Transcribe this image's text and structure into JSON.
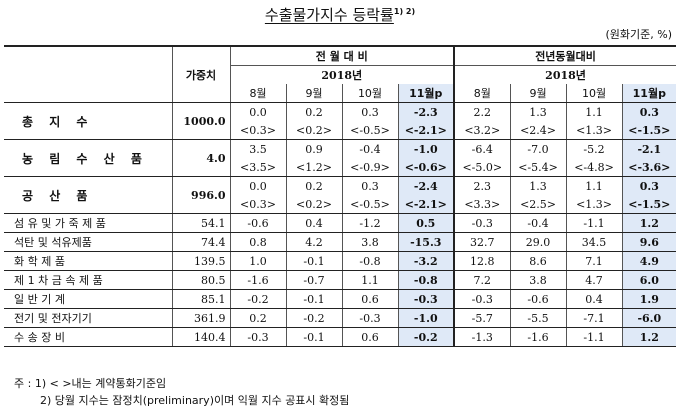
{
  "title": "수출물가지수 등락률",
  "title_sup": "1) 2)",
  "unit": "(원화기준, %)",
  "headers": {
    "weight": "가중치",
    "group1": "전 월 대 비",
    "group2": "전년동월대비",
    "year": "2018년",
    "months": [
      "8월",
      "9월",
      "10월",
      "11월p"
    ]
  },
  "rows": [
    {
      "name": "총 지 수",
      "weight": "1000.0",
      "mom": [
        "0.0",
        "0.2",
        "0.3",
        "-2.3"
      ],
      "mom_c": [
        "<0.3>",
        "<0.2>",
        "<-0.5>",
        "<-2.1>"
      ],
      "yoy": [
        "2.2",
        "1.3",
        "1.1",
        "0.3"
      ],
      "yoy_c": [
        "<3.2>",
        "<2.4>",
        "<1.3>",
        "<-1.5>"
      ]
    },
    {
      "name": "농 림 수 산 품",
      "weight": "4.0",
      "mom": [
        "3.5",
        "0.9",
        "-0.4",
        "-1.0"
      ],
      "mom_c": [
        "<3.5>",
        "<1.2>",
        "<-0.9>",
        "<-0.6>"
      ],
      "yoy": [
        "-6.4",
        "-7.0",
        "-5.2",
        "-2.1"
      ],
      "yoy_c": [
        "<-5.0>",
        "<-5.4>",
        "<-4.8>",
        "<-3.6>"
      ]
    },
    {
      "name": "공 산 품",
      "weight": "996.0",
      "mom": [
        "0.0",
        "0.2",
        "0.3",
        "-2.4"
      ],
      "mom_c": [
        "<0.3>",
        "<0.2>",
        "<-0.5>",
        "<-2.1>"
      ],
      "yoy": [
        "2.3",
        "1.3",
        "1.1",
        "0.3"
      ],
      "yoy_c": [
        "<3.3>",
        "<2.5>",
        "<1.3>",
        "<-1.5>"
      ]
    }
  ],
  "subrows": [
    {
      "name": "섬 유 및 가 죽 제 품",
      "weight": "54.1",
      "mom": [
        "-0.6",
        "0.4",
        "-1.2",
        "0.5"
      ],
      "yoy": [
        "-0.3",
        "-0.4",
        "-1.1",
        "1.2"
      ]
    },
    {
      "name": "석탄 및 석유제품",
      "weight": "74.4",
      "mom": [
        "0.8",
        "4.2",
        "3.8",
        "-15.3"
      ],
      "yoy": [
        "32.7",
        "29.0",
        "34.5",
        "9.6"
      ]
    },
    {
      "name": "화 학 제 품",
      "weight": "139.5",
      "mom": [
        "1.0",
        "-0.1",
        "-0.8",
        "-3.2"
      ],
      "yoy": [
        "12.8",
        "8.6",
        "7.1",
        "4.9"
      ]
    },
    {
      "name": "제 1 차 금 속 제 품",
      "weight": "80.5",
      "mom": [
        "-1.6",
        "-0.7",
        "1.1",
        "-0.8"
      ],
      "yoy": [
        "7.2",
        "3.8",
        "4.7",
        "6.0"
      ]
    },
    {
      "name": "일 반 기 계",
      "weight": "85.1",
      "mom": [
        "-0.2",
        "-0.1",
        "0.6",
        "-0.3"
      ],
      "yoy": [
        "-0.3",
        "-0.6",
        "0.4",
        "1.9"
      ]
    },
    {
      "name": "전기 및 전자기기",
      "weight": "361.9",
      "mom": [
        "0.2",
        "-0.2",
        "-0.3",
        "-1.0"
      ],
      "yoy": [
        "-5.7",
        "-5.5",
        "-7.1",
        "-6.0"
      ]
    },
    {
      "name": "수 송 장 비",
      "weight": "140.4",
      "mom": [
        "-0.3",
        "-0.1",
        "0.6",
        "-0.2"
      ],
      "yoy": [
        "-1.3",
        "-1.6",
        "-1.1",
        "1.2"
      ]
    }
  ],
  "notes": [
    "주 : 1) < >내는 계약통화기준임",
    "2) 당월 지수는 잠정치(preliminary)이며 익월 지수 공표시 확정됨"
  ],
  "colors": {
    "highlight": "#dfe9f7",
    "rule": "#222222"
  }
}
